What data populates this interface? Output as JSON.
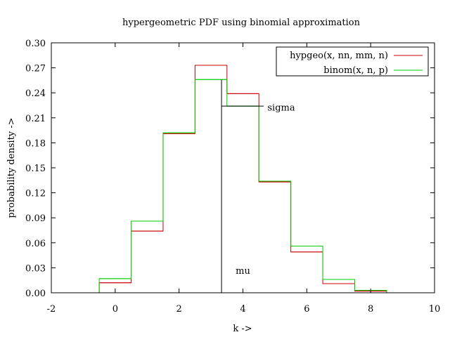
{
  "chart_data": {
    "type": "line",
    "title": "hypergeometric PDF using binomial approximation",
    "xlabel": "k ->",
    "ylabel": "probability density ->",
    "xlim": [
      -2,
      10
    ],
    "ylim": [
      0,
      0.3
    ],
    "xticks": [
      -2,
      0,
      2,
      4,
      6,
      8,
      10
    ],
    "xtick_labels": [
      "-2",
      "0",
      "2",
      "4",
      "6",
      "8",
      "10"
    ],
    "yticks": [
      0.0,
      0.03,
      0.06,
      0.09,
      0.12,
      0.15,
      0.18,
      0.21,
      0.24,
      0.27,
      0.3
    ],
    "ytick_labels": [
      "0.00",
      "0.03",
      "0.06",
      "0.09",
      "0.12",
      "0.15",
      "0.18",
      "0.21",
      "0.24",
      "0.27",
      "0.30"
    ],
    "grid": false,
    "legend_position": "top-right",
    "series": [
      {
        "name": "hypgeo(x, nn, mm, n)",
        "color": "#cc0000",
        "style": "steps",
        "x": [
          0,
          1,
          2,
          3,
          4,
          5,
          6,
          7,
          8
        ],
        "y": [
          0.012,
          0.074,
          0.191,
          0.273,
          0.239,
          0.133,
          0.049,
          0.011,
          0.002
        ]
      },
      {
        "name": "binom(x, n, p)",
        "color": "#00cc00",
        "style": "steps",
        "x": [
          0,
          1,
          2,
          3,
          4,
          5,
          6,
          7,
          8
        ],
        "y": [
          0.017,
          0.086,
          0.192,
          0.256,
          0.224,
          0.134,
          0.056,
          0.016,
          0.003
        ]
      }
    ],
    "annotations": [
      {
        "text": "mu",
        "kind": "vertical-line",
        "x": 3.33,
        "y_top": 0.256,
        "label_x": 4.0,
        "label_y": 0.026
      },
      {
        "text": "sigma",
        "kind": "horizontal-line",
        "y": 0.224,
        "x_from": 3.33,
        "x_to": 4.65,
        "label_x": 5.2,
        "label_y": 0.222
      }
    ]
  }
}
